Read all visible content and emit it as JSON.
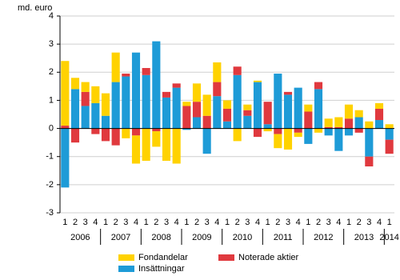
{
  "chart_data": {
    "type": "bar",
    "stacked": true,
    "y_label": "md. euro",
    "groups": [
      {
        "label": "2006",
        "categories": [
          "1",
          "2",
          "3",
          "4"
        ]
      },
      {
        "label": "2007",
        "categories": [
          "1",
          "2",
          "3",
          "4"
        ]
      },
      {
        "label": "2008",
        "categories": [
          "1",
          "2",
          "3",
          "4"
        ]
      },
      {
        "label": "2009",
        "categories": [
          "1",
          "2",
          "3",
          "4"
        ]
      },
      {
        "label": "2010",
        "categories": [
          "1",
          "2",
          "3",
          "4"
        ]
      },
      {
        "label": "2011",
        "categories": [
          "1",
          "2",
          "3",
          "4"
        ]
      },
      {
        "label": "2012",
        "categories": [
          "1",
          "2",
          "3",
          "4"
        ]
      },
      {
        "label": "2013",
        "categories": [
          "1",
          "2",
          "3",
          "4"
        ]
      },
      {
        "label": "2014",
        "categories": [
          "1"
        ]
      }
    ],
    "series": [
      {
        "name": "Fondandelar",
        "color": "#ffd200",
        "values": [
          2.3,
          0.4,
          0.35,
          0.6,
          0.8,
          1.05,
          -0.35,
          -1.0,
          -1.15,
          -0.55,
          -1.15,
          -1.25,
          0.15,
          0.65,
          0.75,
          0.7,
          0.3,
          -0.45,
          0.2,
          0.05,
          -0.1,
          -0.5,
          -0.75,
          -0.15,
          0.25,
          -0.15,
          0.3,
          0.35,
          0.5,
          0.25,
          0.25,
          0.2,
          0.15
        ]
      },
      {
        "name": "Noterade aktier",
        "color": "#e0393e",
        "values": [
          0.1,
          -0.5,
          0.5,
          -0.2,
          -0.45,
          -0.6,
          0.1,
          -0.25,
          0.25,
          -0.1,
          0.2,
          0.15,
          0.8,
          0.55,
          0.45,
          0.5,
          0.45,
          0.3,
          0.2,
          -0.3,
          0.8,
          -0.2,
          0.1,
          -0.15,
          0.6,
          0.25,
          0.05,
          0.05,
          0.35,
          -0.15,
          -0.35,
          0.4,
          -0.5
        ]
      },
      {
        "name": "Insättningar",
        "color": "#1e9bd7",
        "values": [
          -2.1,
          1.4,
          0.8,
          0.9,
          0.45,
          1.65,
          1.85,
          2.7,
          1.9,
          3.1,
          1.1,
          1.45,
          -0.05,
          0.4,
          -0.9,
          1.15,
          0.25,
          1.9,
          0.45,
          1.65,
          0.15,
          1.95,
          1.2,
          1.45,
          -0.55,
          1.4,
          -0.25,
          -0.8,
          -0.25,
          0.4,
          -1.0,
          0.3,
          -0.4
        ]
      }
    ],
    "ylim": [
      -3,
      4
    ],
    "yticks": [
      -3,
      -2,
      -1,
      0,
      1,
      2,
      3,
      4
    ],
    "grid": true
  }
}
